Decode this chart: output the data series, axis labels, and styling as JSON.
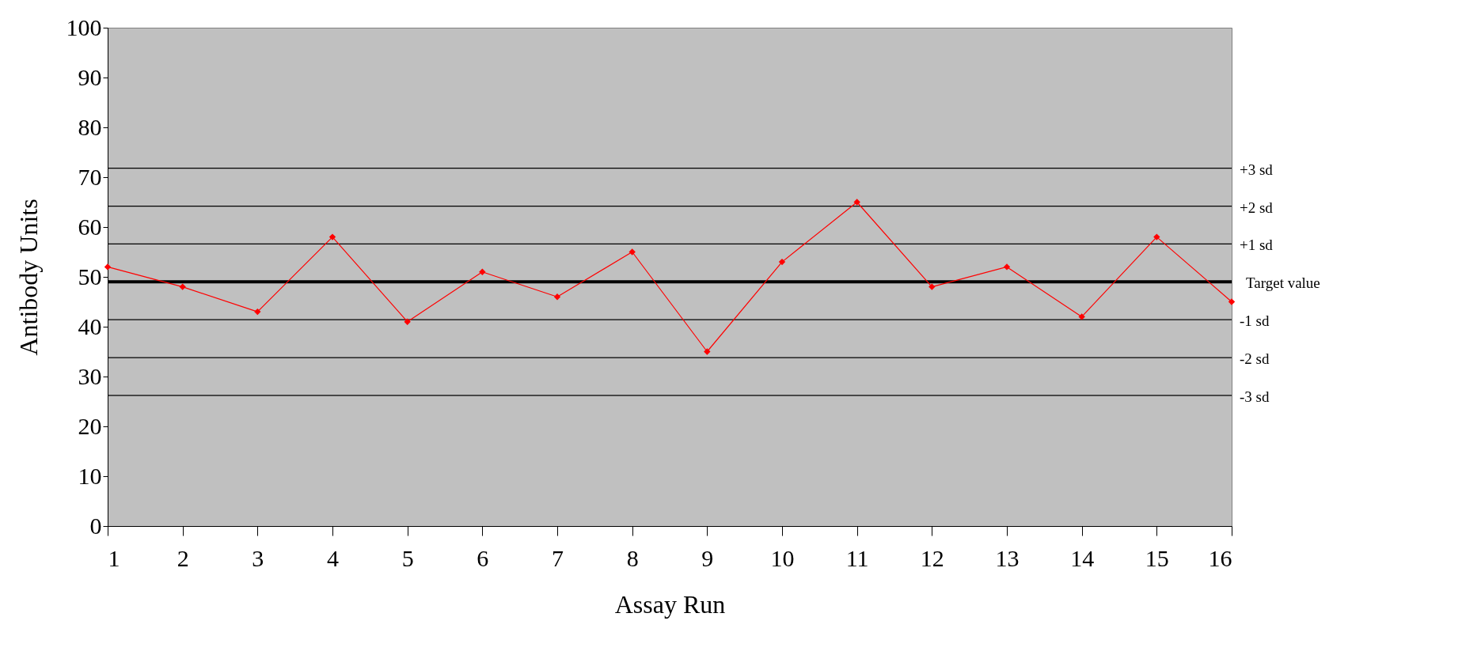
{
  "chart_data": {
    "type": "line",
    "xlabel": "Assay Run",
    "ylabel": "Antibody Units",
    "x": [
      1,
      2,
      3,
      4,
      5,
      6,
      7,
      8,
      9,
      10,
      11,
      12,
      13,
      14,
      15,
      16
    ],
    "series": [
      {
        "color": "#ff0000",
        "values": [
          52,
          48,
          43,
          58,
          41,
          51,
          46,
          55,
          35,
          53,
          65,
          48,
          52,
          42,
          58,
          45
        ]
      }
    ],
    "xlim": [
      1,
      16
    ],
    "xticks": [
      1,
      2,
      3,
      4,
      5,
      6,
      7,
      8,
      9,
      10,
      11,
      12,
      13,
      14,
      15,
      16
    ],
    "ylim": [
      0,
      100
    ],
    "yticks": [
      0,
      10,
      20,
      30,
      40,
      50,
      60,
      70,
      80,
      90,
      100
    ],
    "marker": "diamond",
    "grid": false,
    "ref_lines": [
      {
        "axis": "y",
        "value": 71.8,
        "label": "+3 sd",
        "color": "#000000"
      },
      {
        "axis": "y",
        "value": 64.2,
        "label": "+2 sd",
        "color": "#000000"
      },
      {
        "axis": "y",
        "value": 56.6,
        "label": "+1 sd",
        "color": "#000000"
      },
      {
        "axis": "y",
        "value": 49,
        "label": "Target value",
        "color": "#000000"
      },
      {
        "axis": "y",
        "value": 41.4,
        "label": "-1 sd",
        "color": "#000000"
      },
      {
        "axis": "y",
        "value": 33.8,
        "label": "-2 sd",
        "color": "#000000"
      },
      {
        "axis": "y",
        "value": 26.2,
        "label": "-3 sd",
        "color": "#000000"
      }
    ]
  }
}
